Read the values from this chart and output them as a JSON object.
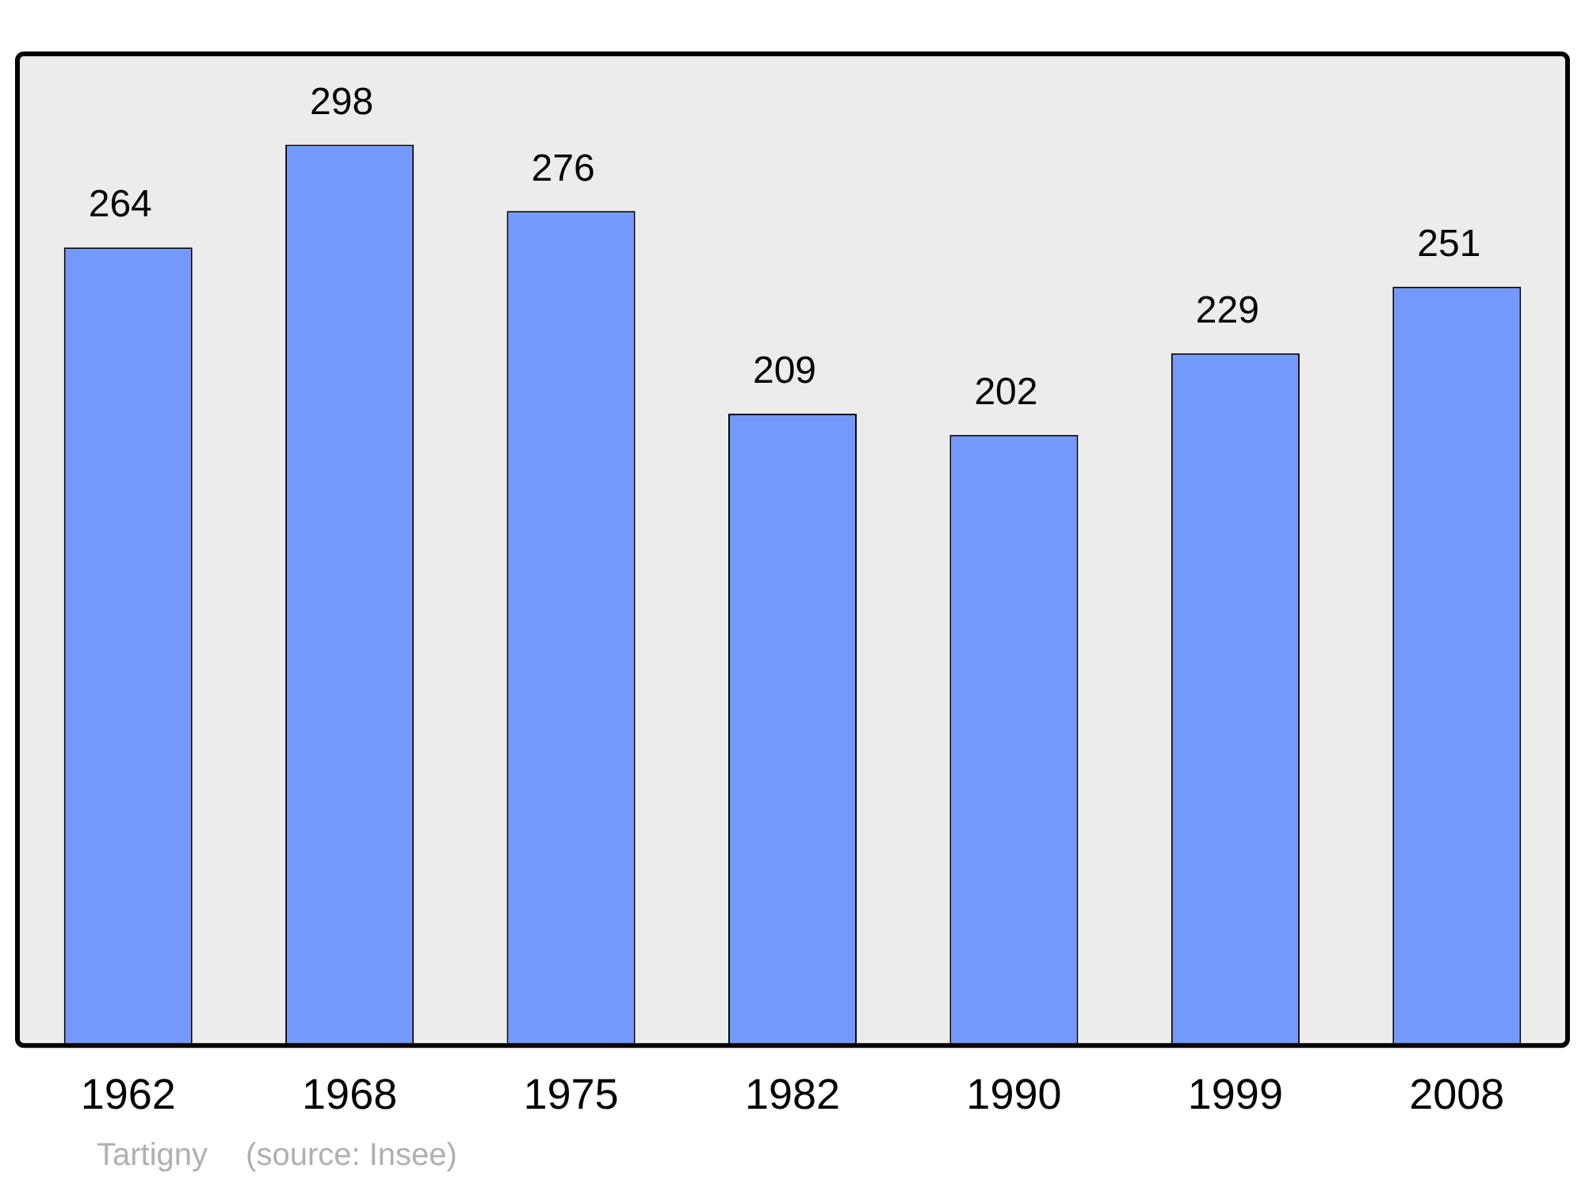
{
  "chart_data": {
    "type": "bar",
    "categories": [
      "1962",
      "1968",
      "1975",
      "1982",
      "1990",
      "1999",
      "2008"
    ],
    "values": [
      264,
      298,
      276,
      209,
      202,
      229,
      251
    ],
    "color": "#7399ff",
    "ylim": [
      0,
      328
    ],
    "data_labels": true,
    "grid": false,
    "legend": false,
    "annotations": [
      "Tartigny",
      "(source: Insee)"
    ]
  }
}
